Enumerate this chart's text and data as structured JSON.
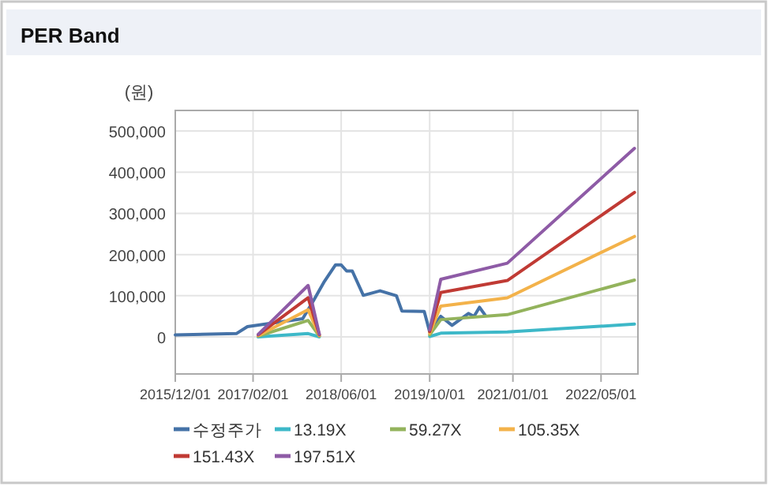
{
  "chart_data": {
    "type": "line",
    "title": "PER Band",
    "ylabel": "(원)",
    "series": [
      {
        "name": "수정주가",
        "color": "#4572a7",
        "x": [
          "2015-12",
          "2016-11",
          "2017-01",
          "2017-11",
          "2018-01",
          "2018-03",
          "2018-05",
          "2018-06",
          "2018-07",
          "2018-08",
          "2018-10",
          "2019-01",
          "2019-04",
          "2019-05",
          "2019-09",
          "2019-10",
          "2019-12",
          "2020-02",
          "2020-05",
          "2020-06",
          "2020-07",
          "2020-08"
        ],
        "values": [
          5000,
          8000,
          25000,
          44000,
          89000,
          135000,
          175000,
          175000,
          160000,
          160000,
          101000,
          112000,
          100000,
          63000,
          62000,
          12000,
          50000,
          28000,
          57000,
          50000,
          72000,
          53000
        ]
      },
      {
        "name": "13.19X",
        "color": "#3db8c8",
        "x": [
          "2017-03",
          "2017-12",
          "2018-02"
        ],
        "values": [
          0,
          8000,
          0
        ]
      },
      {
        "name": "59.27X",
        "color": "#93b35c",
        "x": [
          "2017-03",
          "2017-12",
          "2018-02"
        ],
        "values": [
          2000,
          40000,
          2000
        ]
      },
      {
        "name": "105.35X",
        "color": "#f3b24a",
        "x": [
          "2017-03",
          "2017-12",
          "2018-02"
        ],
        "values": [
          3000,
          66000,
          3000
        ]
      },
      {
        "name": "151.43X",
        "color": "#c03a34",
        "x": [
          "2017-03",
          "2017-12",
          "2018-02"
        ],
        "values": [
          5000,
          95000,
          5000
        ]
      },
      {
        "name": "197.51X",
        "color": "#8e5ba6",
        "x": [
          "2017-03",
          "2017-12",
          "2018-02"
        ],
        "values": [
          6000,
          125000,
          6000
        ]
      },
      {
        "color": "#3db8c8",
        "x": [
          "2019-10",
          "2019-12",
          "2020-12",
          "2022-11"
        ],
        "values": [
          1000,
          9000,
          12000,
          31000
        ]
      },
      {
        "color": "#93b35c",
        "x": [
          "2019-10",
          "2019-12",
          "2020-12",
          "2022-11"
        ],
        "values": [
          5000,
          42000,
          54000,
          138000
        ]
      },
      {
        "color": "#f3b24a",
        "x": [
          "2019-10",
          "2019-12",
          "2020-12",
          "2022-11"
        ],
        "values": [
          9000,
          75000,
          95000,
          244000
        ]
      },
      {
        "color": "#c03a34",
        "x": [
          "2019-10",
          "2019-12",
          "2020-12",
          "2022-11"
        ],
        "values": [
          13000,
          108000,
          137000,
          351000
        ]
      },
      {
        "color": "#8e5ba6",
        "x": [
          "2019-10",
          "2019-12",
          "2020-12",
          "2022-11"
        ],
        "values": [
          17000,
          140000,
          179000,
          458000
        ]
      }
    ],
    "xlim": [
      "2015-12-01",
      "2022-11-20"
    ],
    "xticks": [
      {
        "value": "2015-12-01",
        "label": "2015/12/01"
      },
      {
        "value": "2017-02-01",
        "label": "2017/02/01"
      },
      {
        "value": "2018-06-01",
        "label": "2018/06/01"
      },
      {
        "value": "2019-10-01",
        "label": "2019/10/01"
      },
      {
        "value": "2021-01-01",
        "label": "2021/01/01"
      },
      {
        "value": "2022-05-01",
        "label": "2022/05/01"
      }
    ],
    "ylim": [
      -90000,
      550000
    ],
    "yticks": [
      {
        "value": 0,
        "label": "0"
      },
      {
        "value": 100000,
        "label": "100,000"
      },
      {
        "value": 200000,
        "label": "200,000"
      },
      {
        "value": 300000,
        "label": "300,000"
      },
      {
        "value": 400000,
        "label": "400,000"
      },
      {
        "value": 500000,
        "label": "500,000"
      }
    ],
    "grid": true,
    "legend": "bottom",
    "line_style": "solid",
    "marker": "none"
  }
}
